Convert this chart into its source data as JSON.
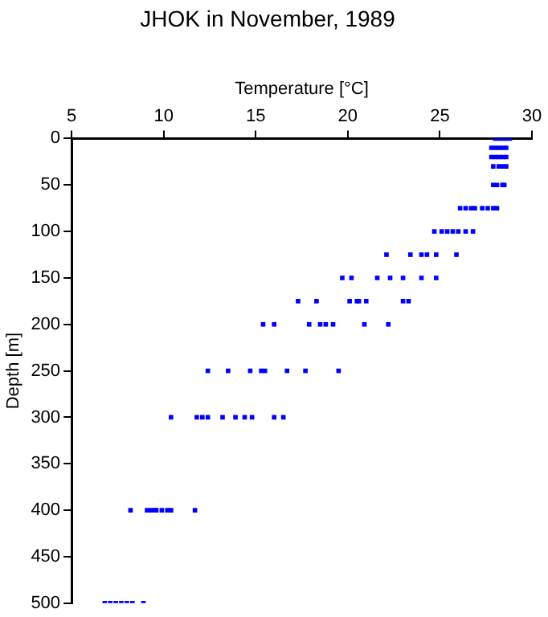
{
  "chart_data": {
    "type": "scatter",
    "title": "JHOK in November, 1989",
    "xlabel": "Temperature [°C]",
    "ylabel": "Depth [m]",
    "xlim": [
      5,
      30
    ],
    "xticks": [
      5,
      10,
      15,
      20,
      25,
      30
    ],
    "ylim": [
      500,
      0
    ],
    "yticks": [
      0,
      50,
      100,
      150,
      200,
      250,
      300,
      350,
      400,
      450,
      500
    ],
    "grid": false,
    "legend": false,
    "marker": "square",
    "series": [
      {
        "color": "#0000ff",
        "x": [
          28.0,
          28.2,
          28.4,
          28.6,
          28.8,
          27.8,
          28.0,
          28.2,
          28.4,
          28.6,
          27.8,
          28.0,
          28.2,
          28.4,
          28.6,
          27.9,
          28.2,
          28.4,
          28.6,
          27.9,
          28.1,
          28.4,
          28.5,
          26.1,
          26.4,
          26.7,
          26.9,
          27.3,
          27.6,
          27.9,
          28.1,
          24.7,
          25.1,
          25.4,
          25.7,
          26.0,
          26.4,
          26.8,
          22.1,
          23.4,
          24.0,
          24.3,
          24.8,
          25.9,
          19.7,
          20.2,
          21.6,
          22.3,
          23.0,
          24.0,
          24.8,
          17.3,
          18.3,
          20.1,
          20.5,
          20.6,
          21.0,
          23.0,
          23.3,
          15.4,
          16.0,
          17.9,
          18.5,
          18.8,
          19.2,
          20.9,
          22.2,
          12.4,
          13.5,
          14.7,
          15.3,
          15.5,
          16.7,
          17.7,
          19.5,
          10.4,
          11.8,
          12.1,
          12.4,
          13.2,
          13.9,
          14.4,
          14.8,
          16.0,
          16.5,
          8.2,
          9.1,
          9.3,
          9.5,
          9.6,
          9.9,
          10.2,
          10.4,
          11.7,
          6.8,
          7.1,
          7.4,
          7.7,
          8.0,
          8.3,
          8.9
        ],
        "values": [
          0,
          0,
          0,
          0,
          0,
          10,
          10,
          10,
          10,
          10,
          20,
          20,
          20,
          20,
          20,
          30,
          30,
          30,
          30,
          50,
          50,
          50,
          50,
          75,
          75,
          75,
          75,
          75,
          75,
          75,
          75,
          100,
          100,
          100,
          100,
          100,
          100,
          100,
          125,
          125,
          125,
          125,
          125,
          125,
          150,
          150,
          150,
          150,
          150,
          150,
          150,
          175,
          175,
          175,
          175,
          175,
          175,
          175,
          175,
          200,
          200,
          200,
          200,
          200,
          200,
          200,
          200,
          250,
          250,
          250,
          250,
          250,
          250,
          250,
          250,
          300,
          300,
          300,
          300,
          300,
          300,
          300,
          300,
          300,
          300,
          400,
          400,
          400,
          400,
          400,
          400,
          400,
          400,
          400,
          500,
          500,
          500,
          500,
          500,
          500,
          500
        ]
      }
    ]
  }
}
